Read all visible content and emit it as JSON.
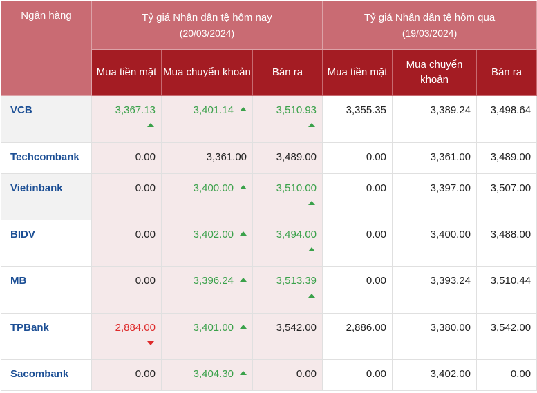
{
  "header": {
    "bank_col": "Ngân hàng",
    "today_group": "Tỷ giá Nhân dân tệ hôm nay",
    "today_date": "(20/03/2024)",
    "yesterday_group": "Tỷ giá Nhân dân tệ hôm qua",
    "yesterday_date": "(19/03/2024)",
    "sub": [
      "Mua tiền mặt",
      "Mua chuyển khoản",
      "Bán ra",
      "Mua tiền mặt",
      "Mua chuyển khoản",
      "Bán ra"
    ]
  },
  "colors": {
    "up": "#3aa14a",
    "down": "#de2b2b",
    "header_light": "#c96b73",
    "header_dark": "#a41c23",
    "bank_link": "#1c4f95"
  },
  "rows": [
    {
      "bank": "VCB",
      "today": [
        {
          "v": "3,367.13",
          "dir": "up",
          "icon": "arrow-up-icon"
        },
        {
          "v": "3,401.14",
          "dir": "up",
          "icon": "arrow-up-icon"
        },
        {
          "v": "3,510.93",
          "dir": "up",
          "icon": "arrow-up-icon"
        }
      ],
      "yesterday": [
        "3,355.35",
        "3,389.24",
        "3,498.64"
      ]
    },
    {
      "bank": "Techcombank",
      "today": [
        {
          "v": "0.00",
          "dir": ""
        },
        {
          "v": "3,361.00",
          "dir": ""
        },
        {
          "v": "3,489.00",
          "dir": ""
        }
      ],
      "yesterday": [
        "0.00",
        "3,361.00",
        "3,489.00"
      ]
    },
    {
      "bank": "Vietinbank",
      "today": [
        {
          "v": "0.00",
          "dir": ""
        },
        {
          "v": "3,400.00",
          "dir": "up",
          "icon": "arrow-up-icon"
        },
        {
          "v": "3,510.00",
          "dir": "up",
          "icon": "arrow-up-icon"
        }
      ],
      "yesterday": [
        "0.00",
        "3,397.00",
        "3,507.00"
      ]
    },
    {
      "bank": "BIDV",
      "today": [
        {
          "v": "0.00",
          "dir": ""
        },
        {
          "v": "3,402.00",
          "dir": "up",
          "icon": "arrow-up-icon"
        },
        {
          "v": "3,494.00",
          "dir": "up",
          "icon": "arrow-up-icon"
        }
      ],
      "yesterday": [
        "0.00",
        "3,400.00",
        "3,488.00"
      ]
    },
    {
      "bank": "MB",
      "today": [
        {
          "v": "0.00",
          "dir": ""
        },
        {
          "v": "3,396.24",
          "dir": "up",
          "icon": "arrow-up-icon"
        },
        {
          "v": "3,513.39",
          "dir": "up",
          "icon": "arrow-up-icon"
        }
      ],
      "yesterday": [
        "0.00",
        "3,393.24",
        "3,510.44"
      ]
    },
    {
      "bank": "TPBank",
      "today": [
        {
          "v": "2,884.00",
          "dir": "down",
          "icon": "arrow-down-icon"
        },
        {
          "v": "3,401.00",
          "dir": "up",
          "icon": "arrow-up-icon"
        },
        {
          "v": "3,542.00",
          "dir": ""
        }
      ],
      "yesterday": [
        "2,886.00",
        "3,380.00",
        "3,542.00"
      ]
    },
    {
      "bank": "Sacombank",
      "today": [
        {
          "v": "0.00",
          "dir": ""
        },
        {
          "v": "3,404.30",
          "dir": "up",
          "icon": "arrow-up-icon"
        },
        {
          "v": "0.00",
          "dir": ""
        }
      ],
      "yesterday": [
        "0.00",
        "3,402.00",
        "0.00"
      ]
    }
  ]
}
